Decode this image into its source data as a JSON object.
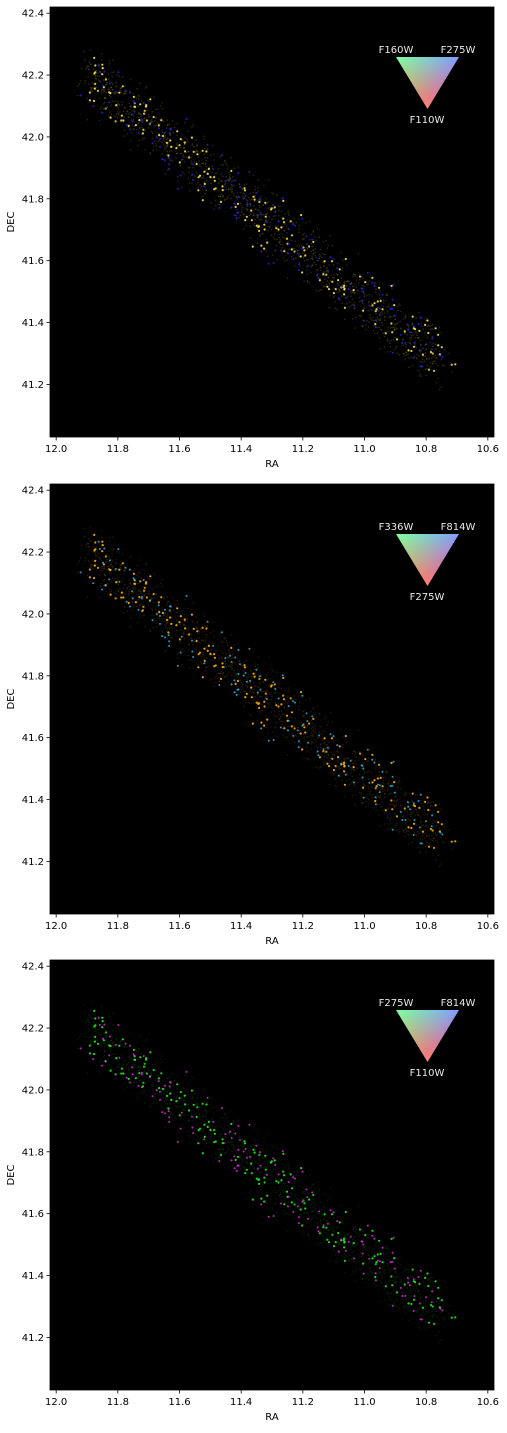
{
  "chart_data": [
    {
      "type": "scatter",
      "panel": 1,
      "xlabel": "RA",
      "ylabel": "DEC",
      "xlim": [
        12.02,
        10.58
      ],
      "ylim": [
        41.03,
        42.42
      ],
      "x_ticks": [
        "12.0",
        "11.8",
        "11.6",
        "11.4",
        "11.2",
        "11.0",
        "10.8",
        "10.6"
      ],
      "y_ticks": [
        "41.2",
        "41.4",
        "41.6",
        "41.8",
        "42.0",
        "42.2",
        "42.4"
      ],
      "background": "#000000",
      "color_key": {
        "top_left": "F160W",
        "top_right": "F275W",
        "bottom": "F110W"
      },
      "dominant_colors": [
        "#ffe24a",
        "#2a2aff",
        "#8a7a1a"
      ]
    },
    {
      "type": "scatter",
      "panel": 2,
      "xlabel": "RA",
      "ylabel": "DEC",
      "xlim": [
        12.02,
        10.58
      ],
      "ylim": [
        41.03,
        42.42
      ],
      "x_ticks": [
        "12.0",
        "11.8",
        "11.6",
        "11.4",
        "11.2",
        "11.0",
        "10.8",
        "10.6"
      ],
      "y_ticks": [
        "41.2",
        "41.4",
        "41.6",
        "41.8",
        "42.0",
        "42.2",
        "42.4"
      ],
      "background": "#000000",
      "color_key": {
        "top_left": "F336W",
        "top_right": "F814W",
        "bottom": "F275W"
      },
      "dominant_colors": [
        "#ffb000",
        "#33ccff",
        "#6a5010"
      ]
    },
    {
      "type": "scatter",
      "panel": 3,
      "xlabel": "RA",
      "ylabel": "DEC",
      "xlim": [
        12.02,
        10.58
      ],
      "ylim": [
        41.03,
        42.42
      ],
      "x_ticks": [
        "12.0",
        "11.8",
        "11.6",
        "11.4",
        "11.2",
        "11.0",
        "10.8",
        "10.6"
      ],
      "y_ticks": [
        "41.2",
        "41.4",
        "41.6",
        "41.8",
        "42.0",
        "42.2",
        "42.4"
      ],
      "background": "#000000",
      "color_key": {
        "top_left": "F275W",
        "top_right": "F814W",
        "bottom": "F110W"
      },
      "dominant_colors": [
        "#22ee22",
        "#ff33ff",
        "#145014"
      ]
    }
  ]
}
